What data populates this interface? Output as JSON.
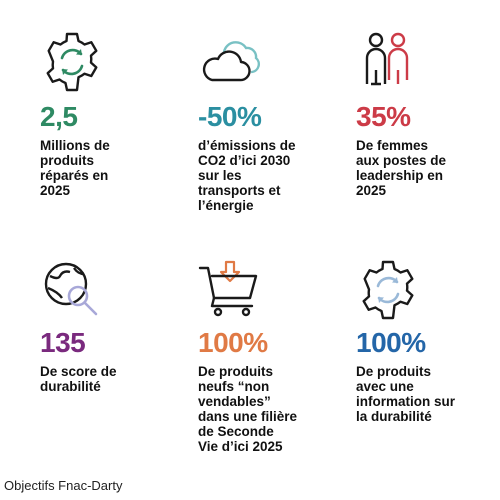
{
  "items": [
    {
      "icon": "gear-refresh-icon",
      "value": "2,5",
      "color": "#2e8a63",
      "text": "Millions de\nproduits\nréparés en\n2025"
    },
    {
      "icon": "cloud-icon",
      "value": "-50%",
      "color": "#2b8fa1",
      "text": "d’émissions de\nCO2 d’ici 2030\nsur les\ntransports et\nl’énergie"
    },
    {
      "icon": "people-icon",
      "value": "35%",
      "color": "#cc3b47",
      "text": "De femmes\naux postes de\nleadership en\n2025"
    },
    {
      "icon": "globe-search-icon",
      "value": "135",
      "color": "#7a2a7e",
      "text": "De score de\ndurabilité"
    },
    {
      "icon": "shopping-cart-icon",
      "value": "100%",
      "color": "#e07a45",
      "text": "De produits\nneufs “non\nvendables”\ndans une filière\nde Seconde\nVie d’ici 2025"
    },
    {
      "icon": "gear-refresh-icon",
      "value": "100%",
      "color": "#2466a8",
      "text": "De produits\navec une\ninformation sur\nla durabilité"
    }
  ],
  "caption": "Objectifs Fnac-Darty",
  "icon_color": "#1a1a1a",
  "icon_accent": "#79c1c4"
}
